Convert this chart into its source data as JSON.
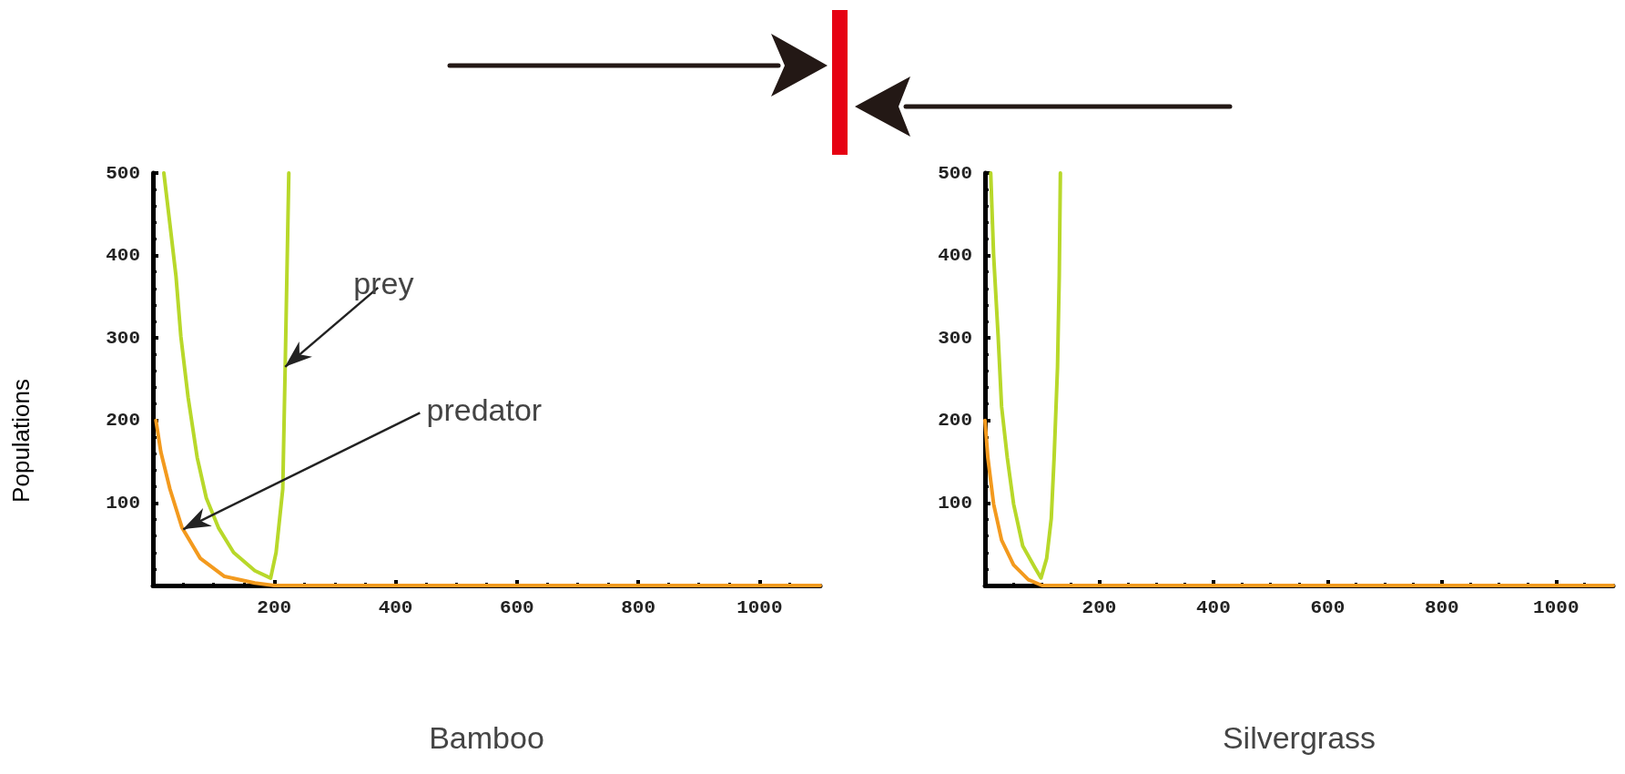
{
  "chart_data": [
    {
      "type": "line",
      "xlabel": "Bamboo",
      "ylabel": "Populations",
      "xlim": [
        0,
        1100
      ],
      "ylim": [
        0,
        500
      ],
      "xticks": [
        200,
        400,
        600,
        800,
        1000
      ],
      "yticks": [
        100,
        200,
        300,
        400,
        500
      ],
      "grid": false,
      "marker": "none",
      "line_style": "solid",
      "series": [
        {
          "color": "#b8d82a",
          "x": [
            18,
            28,
            38,
            46,
            58,
            73,
            88,
            108,
            133,
            168,
            194,
            203,
            214,
            218,
            224
          ],
          "values": [
            500,
            438,
            375,
            302,
            228,
            155,
            106,
            70,
            40,
            18,
            9,
            40,
            117,
            265,
            500
          ]
        },
        {
          "color": "#f39a1e",
          "x": [
            5,
            13,
            28,
            48,
            78,
            118,
            168,
            200,
            1100
          ],
          "values": [
            200,
            162,
            117,
            70,
            33,
            11,
            3,
            0,
            0
          ]
        }
      ],
      "annotations": [
        {
          "text": "prey",
          "x": 218,
          "y": 265
        },
        {
          "text": "predator",
          "x": 50,
          "y": 68
        }
      ]
    },
    {
      "type": "line",
      "xlabel": "Silvergrass",
      "xlim": [
        0,
        1100
      ],
      "ylim": [
        0,
        500
      ],
      "xticks": [
        200,
        400,
        600,
        800,
        1000
      ],
      "yticks": [
        100,
        200,
        300,
        400,
        500
      ],
      "grid": false,
      "marker": "none",
      "line_style": "solid",
      "series": [
        {
          "color": "#b8d82a",
          "x": [
            10,
            15,
            23,
            29,
            39,
            50,
            66,
            87,
            98,
            108,
            116,
            121,
            127,
            130,
            132
          ],
          "values": [
            500,
            401,
            302,
            217,
            155,
            99,
            48,
            22,
            9,
            33,
            81,
            155,
            265,
            375,
            500
          ]
        },
        {
          "color": "#f39a1e",
          "x": [
            0,
            5,
            15,
            29,
            50,
            76,
            100,
            1100
          ],
          "values": [
            200,
            155,
            99,
            55,
            25,
            7,
            0,
            0
          ]
        }
      ]
    }
  ]
}
